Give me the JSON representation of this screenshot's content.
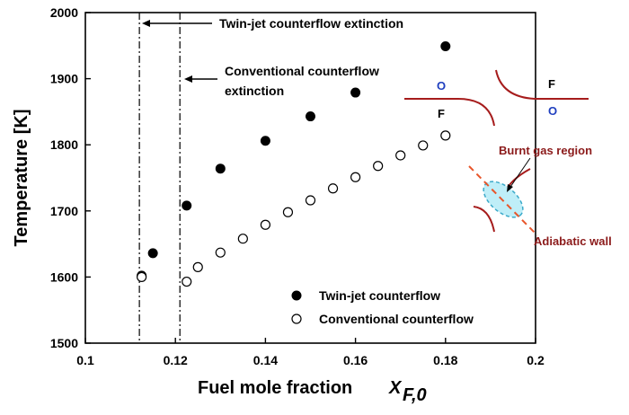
{
  "chart_data": {
    "type": "scatter",
    "xlabel": "Fuel mole fraction",
    "xlabel_var": "X",
    "xlabel_sub": "F,0",
    "ylabel": "Temperature [K]",
    "xlim": [
      0.1,
      0.2
    ],
    "ylim": [
      1500,
      2000
    ],
    "x_ticks": [
      "0.1",
      "0.12",
      "0.14",
      "0.16",
      "0.18",
      "0.2"
    ],
    "y_ticks": [
      "1500",
      "1600",
      "1700",
      "1800",
      "1900",
      "2000"
    ],
    "x_tick_values": [
      0.1,
      0.12,
      0.14,
      0.16,
      0.18,
      0.2
    ],
    "y_tick_values": [
      1500,
      1600,
      1700,
      1800,
      1900,
      2000
    ],
    "series": [
      {
        "name": "Twin-jet counterflow",
        "marker": "filled-circle",
        "color": "#000000",
        "x": [
          0.1125,
          0.115,
          0.1225,
          0.13,
          0.14,
          0.15,
          0.16,
          0.18
        ],
        "y": [
          1602,
          1636,
          1708,
          1764,
          1806,
          1843,
          1879,
          1949
        ]
      },
      {
        "name": "Conventional counterflow",
        "marker": "open-circle",
        "color": "#000000",
        "x": [
          0.1125,
          0.1225,
          0.125,
          0.13,
          0.135,
          0.14,
          0.145,
          0.15,
          0.155,
          0.16,
          0.165,
          0.17,
          0.175,
          0.18
        ],
        "y": [
          1600,
          1593,
          1615,
          1637,
          1658,
          1679,
          1698,
          1716,
          1734,
          1751,
          1768,
          1784,
          1799,
          1814
        ]
      }
    ],
    "vlines": [
      {
        "x": 0.112,
        "label": "Twin-jet counterflow extinction"
      },
      {
        "x": 0.121,
        "label_line1": "Conventional counterflow",
        "label_line2": "extinction"
      }
    ],
    "legend": "lower-right",
    "grid": false
  },
  "inset": {
    "label_o_left": "O",
    "label_f_right": "F",
    "label_f_center": "F",
    "label_o_right": "O",
    "burnt_gas_label": "Burnt gas region",
    "adiabatic_wall_label": "Adiabatic wall",
    "colors": {
      "wall": "#a61c1c",
      "oxidizer": "#1f3fbf",
      "burnt_fill": "#bfeef8",
      "burnt_stroke": "#3aa9c9",
      "dash": "#e8552a"
    }
  }
}
